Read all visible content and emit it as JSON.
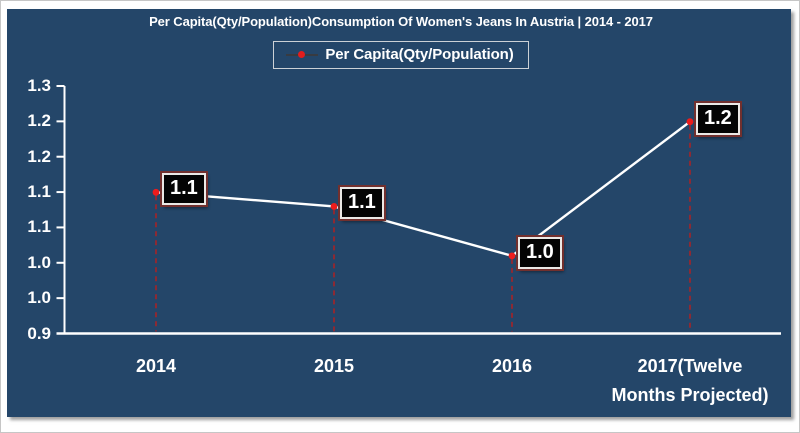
{
  "page": {
    "title": "Per Capita(Qty/Population)Consumption Of Women's Jeans In Austria | 2014 - 2017"
  },
  "legend": {
    "label": "Per Capita(Qty/Population)",
    "marker_icon": "red-dot-on-line"
  },
  "colors": {
    "panel_bg": "#244669",
    "series_line": "#ffffff",
    "point_marker": "#ee1c1c",
    "drop_line": "#b81e1e",
    "axis": "#ffffff",
    "text": "#ffffff",
    "data_label_bg": "#040404",
    "data_label_border_outer": "#72302e",
    "data_label_border_inner": "#ebe9e6",
    "legend_border": "#ccd1d6"
  },
  "chart_data": {
    "type": "line",
    "title": "Per Capita(Qty/Population)Consumption Of Women's Jeans In Austria | 2014 - 2017",
    "categories": [
      "2014",
      "2015",
      "2016",
      "2017(Twelve Months Projected)"
    ],
    "series": [
      {
        "name": "Per Capita(Qty/Population)",
        "values": [
          1.1,
          1.08,
          1.01,
          1.2
        ],
        "point_labels": [
          "1.1",
          "1.1",
          "1.0",
          "1.2"
        ]
      }
    ],
    "ylim": [
      0.9,
      1.25
    ],
    "ytick_step": 0.05,
    "ytick_labels_top_to_bottom": [
      "1.3",
      "1.2",
      "1.2",
      "1.1",
      "1.1",
      "1.0",
      "1.0",
      "0.9"
    ],
    "grid": "off",
    "legend_position": "top-center",
    "drop_lines": "dashed-red",
    "marker": "red-dot"
  }
}
